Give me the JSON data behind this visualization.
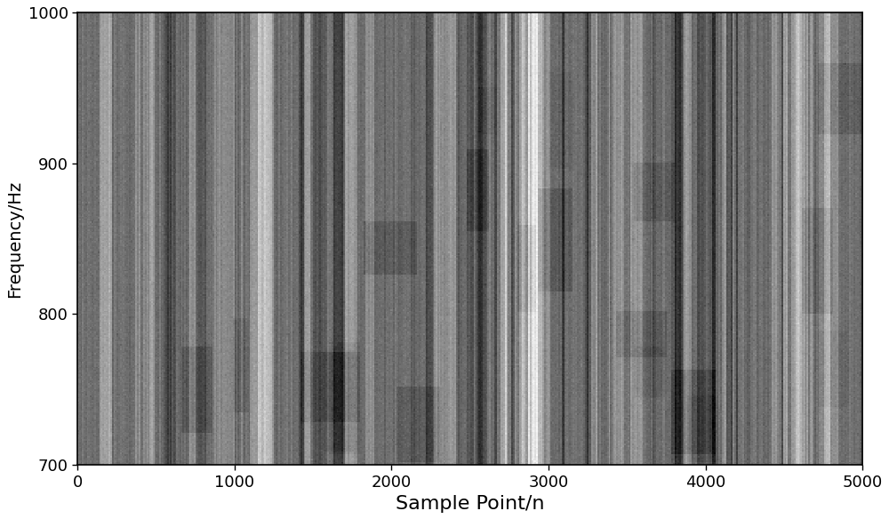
{
  "title": "",
  "xlabel": "Sample Point/n",
  "ylabel": "Frequency/Hz",
  "xlim": [
    0,
    5000
  ],
  "ylim": [
    700,
    1000
  ],
  "xticks": [
    0,
    1000,
    2000,
    3000,
    4000,
    5000
  ],
  "yticks": [
    700,
    800,
    900,
    1000
  ],
  "x_samples": 5000,
  "y_freq_min": 700,
  "y_freq_max": 1000,
  "colormap": "gray",
  "seed": 42,
  "figsize": [
    10.0,
    5.84
  ],
  "dpi": 100,
  "xlabel_fontsize": 16,
  "ylabel_fontsize": 14,
  "tick_fontsize": 13,
  "background_color": "#ffffff"
}
